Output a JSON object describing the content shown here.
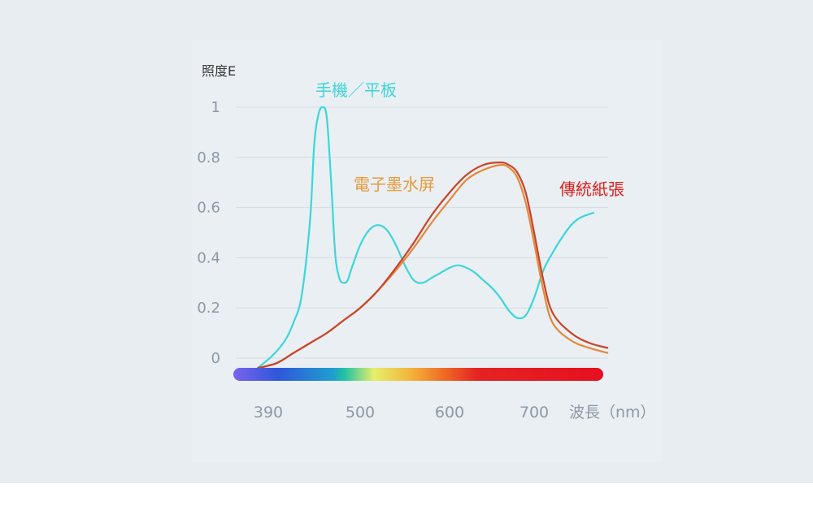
{
  "chart_data": {
    "type": "line",
    "ylabel": "照度E",
    "xlabel": "波長（nm）",
    "x_ticks": [
      390,
      500,
      600,
      700
    ],
    "y_ticks": [
      0,
      0.2,
      0.4,
      0.6,
      0.8,
      1
    ],
    "y_tick_labels": [
      "0",
      "0.2",
      "0.4",
      "0.6",
      "0.8",
      "1"
    ],
    "ylim": [
      0,
      1
    ],
    "xlim": [
      360,
      800
    ],
    "grid": true,
    "legend": "inline labels",
    "spectrum_bar": true,
    "series": [
      {
        "name": "手機／平板",
        "color": "#3dd6d8",
        "x": [
          380,
          395,
          410,
          420,
          430,
          440,
          445,
          450,
          455,
          460,
          465,
          470,
          475,
          480,
          485,
          490,
          500,
          510,
          520,
          530,
          540,
          550,
          560,
          570,
          580,
          590,
          600,
          610,
          620,
          630,
          640,
          650,
          660,
          670,
          680,
          690,
          700,
          710,
          720,
          730,
          740,
          750,
          765
        ],
        "y": [
          -0.04,
          0.01,
          0.07,
          0.14,
          0.25,
          0.55,
          0.85,
          0.97,
          1.0,
          0.96,
          0.72,
          0.42,
          0.32,
          0.3,
          0.31,
          0.36,
          0.45,
          0.51,
          0.53,
          0.51,
          0.45,
          0.37,
          0.31,
          0.3,
          0.32,
          0.34,
          0.36,
          0.37,
          0.36,
          0.34,
          0.31,
          0.28,
          0.24,
          0.19,
          0.16,
          0.17,
          0.24,
          0.35,
          0.42,
          0.48,
          0.53,
          0.56,
          0.58
        ]
      },
      {
        "name": "電子墨水屏",
        "color": "#e5883a",
        "x": [
          380,
          400,
          420,
          440,
          460,
          480,
          500,
          520,
          540,
          560,
          580,
          600,
          620,
          640,
          660,
          670,
          680,
          690,
          700,
          710,
          720,
          740,
          760,
          780
        ],
        "y": [
          -0.04,
          -0.02,
          0.02,
          0.06,
          0.1,
          0.15,
          0.2,
          0.27,
          0.35,
          0.44,
          0.54,
          0.63,
          0.71,
          0.75,
          0.77,
          0.76,
          0.72,
          0.62,
          0.46,
          0.27,
          0.14,
          0.07,
          0.04,
          0.02
        ]
      },
      {
        "name": "傳統紙張",
        "color": "#c8442a",
        "x": [
          380,
          400,
          420,
          440,
          460,
          480,
          500,
          520,
          540,
          560,
          580,
          600,
          620,
          640,
          660,
          670,
          680,
          690,
          700,
          710,
          720,
          740,
          760,
          780
        ],
        "y": [
          -0.04,
          -0.02,
          0.02,
          0.06,
          0.1,
          0.15,
          0.2,
          0.27,
          0.36,
          0.46,
          0.57,
          0.66,
          0.73,
          0.77,
          0.78,
          0.77,
          0.74,
          0.66,
          0.5,
          0.31,
          0.18,
          0.1,
          0.06,
          0.04
        ]
      }
    ],
    "spectrum_colors": [
      "#7a63f0",
      "#2f57d9",
      "#1f9fcf",
      "#22c1a3",
      "#e6ef6a",
      "#f3b43a",
      "#ef6a24",
      "#e52323",
      "#e5101f"
    ]
  },
  "label_colors": {
    "phone": "#3dd6d8",
    "eink": "#e89a3a",
    "paper": "#e01e1e"
  }
}
